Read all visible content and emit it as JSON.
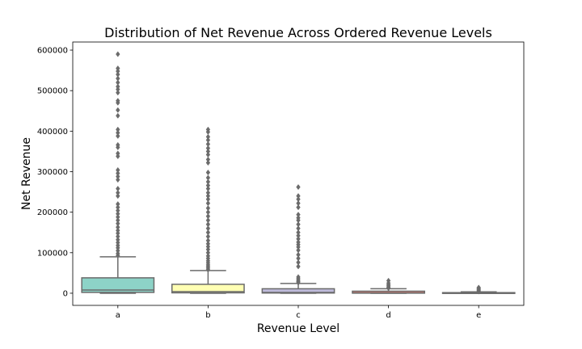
{
  "chart_data": {
    "type": "box",
    "title": "Distribution of Net Revenue Across Ordered Revenue Levels",
    "xlabel": "Revenue Level",
    "ylabel": "Net Revenue",
    "ylim": [
      -30000,
      620000
    ],
    "yticks": [
      0,
      100000,
      200000,
      300000,
      400000,
      500000,
      600000
    ],
    "yticklabels": [
      "0",
      "100000",
      "200000",
      "300000",
      "400000",
      "500000",
      "600000"
    ],
    "grid": false,
    "legend": "none",
    "categories": [
      "a",
      "b",
      "c",
      "d",
      "e"
    ],
    "boxes": [
      {
        "category": "a",
        "color": "#8dd3c7",
        "whisker_low": 0,
        "q1": 2000,
        "median": 8000,
        "q3": 38000,
        "whisker_high": 90000,
        "outliers": [
          93000,
          98000,
          105000,
          112000,
          118000,
          125000,
          132000,
          140000,
          148000,
          155000,
          163000,
          172000,
          180000,
          188000,
          196000,
          204000,
          212000,
          220000,
          240000,
          248000,
          258000,
          280000,
          288000,
          296000,
          304000,
          338000,
          345000,
          360000,
          366000,
          388000,
          396000,
          404000,
          438000,
          452000,
          470000,
          475000,
          495000,
          503000,
          510000,
          520000,
          530000,
          540000,
          548000,
          555000,
          590000
        ]
      },
      {
        "category": "b",
        "color": "#ffffb3",
        "whisker_low": 0,
        "q1": 1000,
        "median": 4000,
        "q3": 22000,
        "whisker_high": 56000,
        "outliers": [
          58000,
          62000,
          66000,
          70000,
          75000,
          80000,
          86000,
          92000,
          100000,
          108000,
          115000,
          122000,
          130000,
          140000,
          150000,
          160000,
          170000,
          180000,
          190000,
          200000,
          210000,
          222000,
          232000,
          240000,
          248000,
          258000,
          266000,
          275000,
          285000,
          298000,
          322000,
          330000,
          342000,
          350000,
          358000,
          368000,
          378000,
          386000,
          398000,
          404000
        ]
      },
      {
        "category": "c",
        "color": "#bebada",
        "whisker_low": 0,
        "q1": 500,
        "median": 2000,
        "q3": 11000,
        "whisker_high": 24000,
        "outliers": [
          26000,
          29000,
          32000,
          36000,
          40000,
          66000,
          76000,
          86000,
          95000,
          106000,
          114000,
          120000,
          126000,
          134000,
          142000,
          150000,
          160000,
          170000,
          180000,
          186000,
          194000,
          212000,
          222000,
          232000,
          240000,
          262000
        ]
      },
      {
        "category": "d",
        "color": "#fb8072",
        "whisker_low": 0,
        "q1": 200,
        "median": 1000,
        "q3": 5000,
        "whisker_high": 11000,
        "outliers": [
          12500,
          15000,
          18000,
          21000,
          25000,
          31000
        ]
      },
      {
        "category": "e",
        "color": "#80b1d3",
        "whisker_low": 0,
        "q1": 100,
        "median": 300,
        "q3": 1500,
        "whisker_high": 3500,
        "outliers": [
          4000,
          6000,
          8000,
          10000,
          12000,
          14000
        ]
      }
    ]
  }
}
